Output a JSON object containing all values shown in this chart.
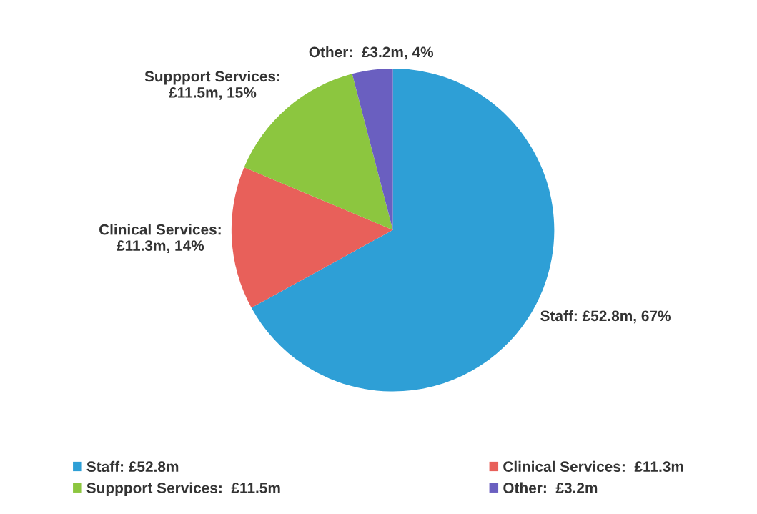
{
  "chart_data": {
    "type": "pie",
    "categories": [
      "Staff: £52.8m",
      "Clinical Services:  £11.3m",
      "Suppport Services:  £11.5m",
      "Other:  £3.2m"
    ],
    "values": [
      52.8,
      11.3,
      11.5,
      3.2
    ],
    "colors": [
      "#2e9fd6",
      "#e8605a",
      "#8cc63f",
      "#6a5fc0"
    ],
    "annotations": [
      "Staff: £52.8m, 67%",
      "Clinical Services:\n£11.3m, 14%",
      "Suppport Services:\n£11.5m, 15%",
      "Other:  £3.2m, 4%"
    ],
    "legend": "bottom"
  }
}
